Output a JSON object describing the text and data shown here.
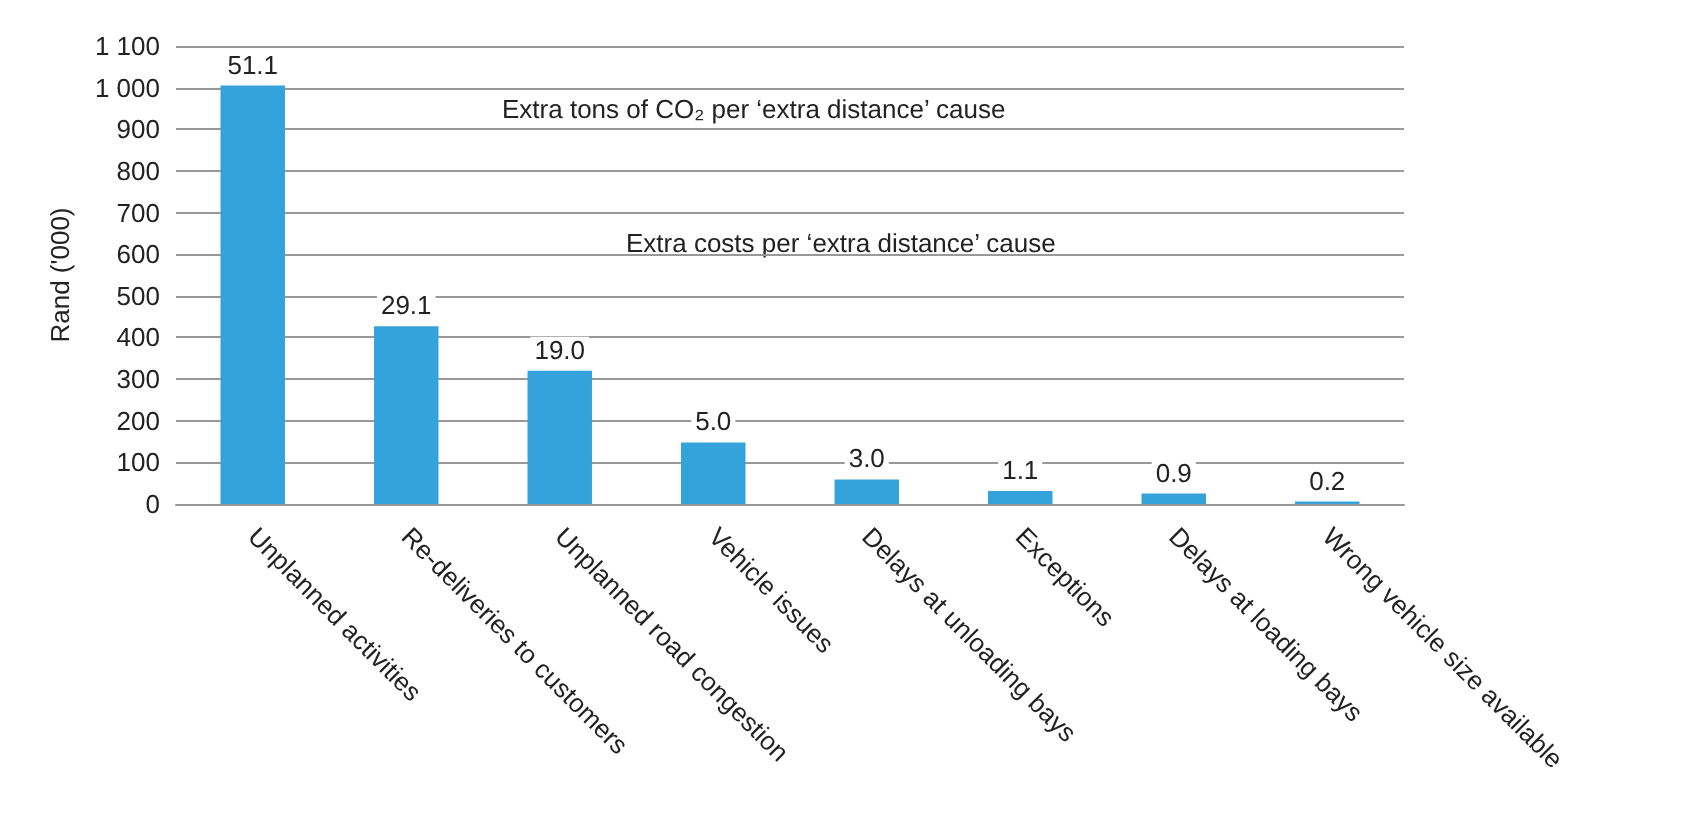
{
  "chart_data": {
    "type": "bar",
    "ylabel": "Rand ('000)",
    "categories": [
      "Unplanned activities",
      "Re-deliveries to customers",
      "Unplanned road congestion",
      "Vehicle issues",
      "Delays at unloading bays",
      "Exceptions",
      "Delays at loading bays",
      "Wrong vehicle size available"
    ],
    "values": [
      1005,
      427,
      320,
      148,
      59,
      31,
      25,
      6
    ],
    "color": "#35a3db",
    "ylim": [
      0,
      1100
    ],
    "yticks": [
      0,
      100,
      200,
      300,
      400,
      500,
      600,
      700,
      800,
      900,
      {
        "value": 1000,
        "label": "1 000"
      },
      {
        "value": 1100,
        "label": "1 100"
      }
    ],
    "grid": "y",
    "annotations": [
      "Extra tons of CO₂ per ‘extra distance’ cause",
      "Extra costs per ‘extra distance’ cause",
      {
        "text": "51.1",
        "x": "Unplanned activities",
        "y": 1005
      },
      {
        "text": "29.1",
        "x": "Re-deliveries to customers",
        "y": 427
      },
      {
        "text": "19.0",
        "x": "Unplanned road congestion",
        "y": 320
      },
      {
        "text": "5.0",
        "x": "Vehicle issues",
        "y": 148
      },
      {
        "text": "3.0",
        "x": "Delays at unloading bays",
        "y": 59
      },
      {
        "text": "1.1",
        "x": "Exceptions",
        "y": 31
      },
      {
        "text": "0.9",
        "x": "Delays at loading bays",
        "y": 25
      },
      {
        "text": "0.2",
        "x": "Wrong vehicle size available",
        "y": 6
      }
    ]
  }
}
